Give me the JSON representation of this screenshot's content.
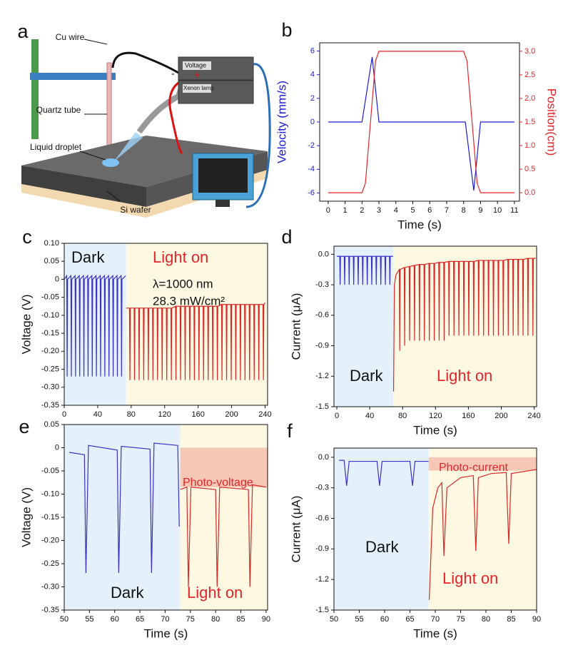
{
  "diagram": {
    "label": "a",
    "labels": [
      "Cu wire",
      "Quartz tube",
      "Liquid droplet",
      "Si wafer",
      "Voltage",
      "Xenon lamp",
      "-",
      "+"
    ]
  },
  "chart_data": [
    {
      "label": "b",
      "type": "line",
      "xlabel": "Time (s)",
      "ylabel": "Velocity (mm/s)",
      "y2label": "Position(cm)",
      "ylabel_color": "#1c1cd6",
      "y2label_color": "#e0262b",
      "xlim": [
        -0.5,
        11.3
      ],
      "xticks": [
        0,
        1,
        2,
        3,
        4,
        5,
        6,
        7,
        8,
        9,
        10,
        11
      ],
      "ylim": [
        -6.7,
        6.7
      ],
      "yticks": [
        -6,
        -4,
        -2,
        0,
        2,
        4,
        6
      ],
      "y2lim": [
        -0.18,
        3.18
      ],
      "y2ticks": [
        {
          "value": 0,
          "label": "0.0"
        },
        0.5,
        {
          "value": 1,
          "label": "1.0"
        },
        1.5,
        {
          "value": 2,
          "label": "2.0"
        },
        2.5,
        {
          "value": 3,
          "label": "3.0"
        }
      ],
      "series": [
        {
          "color": "#1c1cd6",
          "x": [
            0,
            2,
            2.6,
            3,
            8.1,
            8.6,
            9,
            11
          ],
          "values": [
            0,
            0,
            5.5,
            0,
            0,
            -5.8,
            0,
            0
          ]
        },
        {
          "color": "#e0262b",
          "axis": "y2",
          "x": [
            0,
            2,
            2.2,
            2.5,
            2.8,
            3,
            8,
            8.2,
            8.5,
            8.8,
            9,
            11
          ],
          "values": [
            0,
            0,
            0.2,
            1.5,
            2.8,
            3,
            3,
            2.8,
            1.5,
            0.2,
            0,
            0
          ]
        }
      ]
    },
    {
      "label": "c",
      "type": "line",
      "xlabel": "Time (s)",
      "ylabel": "Voltage (V)",
      "xlim": [
        0,
        243
      ],
      "xticks": [
        0,
        40,
        80,
        120,
        160,
        200,
        240
      ],
      "ylim": [
        -0.35,
        0.1
      ],
      "yticks": [
        {
          "value": 0.1,
          "label": "0.10"
        },
        0.05,
        0,
        -0.05,
        {
          "value": -0.1,
          "label": "-0.10"
        },
        -0.15,
        {
          "value": -0.2,
          "label": "-0.20"
        },
        -0.25,
        {
          "value": -0.3,
          "label": "-0.30"
        },
        -0.35
      ],
      "regions": [
        {
          "label": "Dark",
          "x": [
            0,
            74
          ],
          "color": "#e4f1fb",
          "text_color": "#111111"
        },
        {
          "label": "Light on",
          "x": [
            74,
            243
          ],
          "color": "#fdf8e2",
          "text_color": "#e0262b"
        }
      ],
      "annotations": [
        "λ=1000 nm",
        "28.3 mW/cm²"
      ],
      "series": [
        {
          "color": "#3a32c8",
          "x": [
            0,
            3,
            3.5,
            4,
            8,
            8.5,
            9,
            13,
            13.5,
            14,
            18,
            18.5,
            19,
            23,
            23.5,
            24,
            28,
            28.5,
            29,
            33,
            33.5,
            34,
            38,
            38.5,
            39,
            43,
            43.5,
            44,
            48,
            48.5,
            49,
            53,
            53.5,
            54,
            58,
            58.5,
            59,
            63,
            63.5,
            64,
            68,
            68.5,
            69,
            73.5
          ],
          "values": [
            0,
            0.01,
            -0.27,
            0,
            0.01,
            -0.27,
            0,
            0.01,
            -0.27,
            0,
            0.01,
            -0.27,
            0,
            0.01,
            -0.27,
            0,
            0.01,
            -0.27,
            0,
            0.01,
            -0.27,
            0,
            0.01,
            -0.27,
            0,
            0.01,
            -0.27,
            0,
            0.01,
            -0.27,
            0,
            0.01,
            -0.27,
            0,
            0.01,
            -0.27,
            0,
            0.01,
            -0.27,
            0,
            0.01,
            -0.27,
            0,
            0.01
          ]
        },
        {
          "color": "#d92828",
          "x": [
            74,
            78,
            78.5,
            79,
            83.5,
            84,
            84.5,
            89,
            89.5,
            90,
            94.5,
            95,
            95.5,
            100,
            100.5,
            101,
            105.5,
            106,
            106.5,
            111,
            111.5,
            112,
            116.5,
            117,
            117.5,
            122,
            122.5,
            123,
            127.5,
            128,
            128.5,
            133,
            133.5,
            134,
            138.5,
            139,
            139.5,
            144,
            144.5,
            145,
            149.5,
            150,
            150.5,
            155,
            155.5,
            156,
            160.5,
            161,
            161.5,
            166,
            166.5,
            167,
            171.5,
            172,
            172.5,
            177,
            177.5,
            178,
            182.5,
            183,
            183.5,
            188,
            188.5,
            189,
            193.5,
            194,
            194.5,
            199,
            199.5,
            200,
            204.5,
            205,
            205.5,
            210,
            210.5,
            211,
            215.5,
            216,
            216.5,
            221,
            221.5,
            222,
            226.5,
            227,
            227.5,
            232,
            232.5,
            233,
            237.5,
            238,
            238.5,
            240
          ],
          "values": [
            -0.08,
            -0.08,
            -0.28,
            -0.08,
            -0.08,
            -0.28,
            -0.08,
            -0.08,
            -0.28,
            -0.08,
            -0.08,
            -0.28,
            -0.08,
            -0.08,
            -0.28,
            -0.08,
            -0.08,
            -0.28,
            -0.08,
            -0.08,
            -0.28,
            -0.08,
            -0.08,
            -0.28,
            -0.08,
            -0.08,
            -0.28,
            -0.08,
            -0.08,
            -0.28,
            -0.08,
            -0.075,
            -0.28,
            -0.075,
            -0.075,
            -0.28,
            -0.075,
            -0.075,
            -0.28,
            -0.075,
            -0.075,
            -0.28,
            -0.075,
            -0.075,
            -0.28,
            -0.075,
            -0.075,
            -0.28,
            -0.075,
            -0.075,
            -0.28,
            -0.075,
            -0.075,
            -0.28,
            -0.075,
            -0.075,
            -0.28,
            -0.075,
            -0.075,
            -0.28,
            -0.075,
            -0.07,
            -0.28,
            -0.07,
            -0.07,
            -0.28,
            -0.07,
            -0.07,
            -0.28,
            -0.07,
            -0.07,
            -0.28,
            -0.07,
            -0.07,
            -0.28,
            -0.07,
            -0.07,
            -0.28,
            -0.07,
            -0.07,
            -0.28,
            -0.07,
            -0.07,
            -0.28,
            -0.07,
            -0.07,
            -0.28,
            -0.07,
            -0.07,
            -0.28,
            -0.07,
            -0.065
          ]
        }
      ]
    },
    {
      "label": "d",
      "type": "line",
      "xlabel": "Time (s)",
      "ylabel": "Current (μA)",
      "xlim": [
        -3.5,
        243
      ],
      "xticks": [
        0,
        40,
        80,
        120,
        160,
        200,
        240
      ],
      "ylim": [
        -1.5,
        0.08
      ],
      "yticks": [
        {
          "value": 0,
          "label": "0.0"
        },
        -0.3,
        -0.6,
        -0.9,
        -1.2,
        -1.5
      ],
      "regions": [
        {
          "label": "Dark",
          "x": [
            -3.5,
            68.6
          ],
          "color": "#e4f1fb",
          "text_color": "#111111"
        },
        {
          "label": "Light on",
          "x": [
            68.6,
            243
          ],
          "color": "#fdf8e2",
          "text_color": "#e0262b"
        }
      ],
      "series": [
        {
          "color": "#3a32c8",
          "x": [
            0,
            3.5,
            4,
            4.5,
            9,
            9.5,
            10,
            14.5,
            15,
            15.5,
            20,
            20.5,
            21,
            25.5,
            26,
            26.5,
            31,
            31.5,
            32,
            36.5,
            37,
            37.5,
            42,
            42.5,
            43,
            47.5,
            48,
            48.5,
            53,
            53.5,
            54,
            58.5,
            59,
            59.5,
            64,
            64.5,
            65,
            68.5
          ],
          "values": [
            -0.02,
            -0.02,
            -0.3,
            -0.02,
            -0.02,
            -0.3,
            -0.02,
            -0.02,
            -0.3,
            -0.02,
            -0.02,
            -0.3,
            -0.02,
            -0.02,
            -0.3,
            -0.02,
            -0.02,
            -0.3,
            -0.02,
            -0.02,
            -0.3,
            -0.02,
            -0.02,
            -0.3,
            -0.02,
            -0.02,
            -0.3,
            -0.02,
            -0.02,
            -0.3,
            -0.02,
            -0.02,
            -0.3,
            -0.02,
            -0.02,
            -0.3,
            -0.02,
            -0.02
          ]
        },
        {
          "color": "#d92828",
          "x": [
            69,
            70,
            72,
            76,
            76.5,
            77,
            82,
            82.5,
            83,
            88,
            88.5,
            89,
            94,
            94.5,
            95,
            100,
            100.5,
            101,
            106,
            106.5,
            107,
            112,
            112.5,
            113,
            118,
            118.5,
            119,
            124,
            124.5,
            125,
            130,
            130.5,
            131,
            136,
            136.5,
            137,
            142,
            142.5,
            143,
            148,
            148.5,
            149,
            154,
            154.5,
            155,
            160,
            160.5,
            161,
            166,
            166.5,
            167,
            172,
            172.5,
            173,
            178,
            178.5,
            179,
            184,
            184.5,
            185,
            190,
            190.5,
            191,
            196,
            196.5,
            197,
            202,
            202.5,
            203,
            208,
            208.5,
            209,
            214,
            214.5,
            215,
            220,
            220.5,
            221,
            226,
            226.5,
            227,
            232,
            232.5,
            233,
            238,
            238.5,
            239,
            242
          ],
          "values": [
            -1.35,
            -0.3,
            -0.2,
            -0.15,
            -0.95,
            -0.15,
            -0.13,
            -0.9,
            -0.13,
            -0.12,
            -0.85,
            -0.12,
            -0.11,
            -0.85,
            -0.11,
            -0.1,
            -0.85,
            -0.1,
            -0.1,
            -0.85,
            -0.1,
            -0.09,
            -0.85,
            -0.09,
            -0.09,
            -0.85,
            -0.09,
            -0.08,
            -0.85,
            -0.08,
            -0.08,
            -0.85,
            -0.08,
            -0.07,
            -0.8,
            -0.07,
            -0.07,
            -0.8,
            -0.07,
            -0.07,
            -0.8,
            -0.07,
            -0.07,
            -0.8,
            -0.07,
            -0.07,
            -0.8,
            -0.07,
            -0.07,
            -0.8,
            -0.07,
            -0.06,
            -0.8,
            -0.06,
            -0.06,
            -0.8,
            -0.06,
            -0.06,
            -0.8,
            -0.06,
            -0.06,
            -0.8,
            -0.06,
            -0.06,
            -0.8,
            -0.06,
            -0.06,
            -0.8,
            -0.06,
            -0.05,
            -0.8,
            -0.05,
            -0.05,
            -0.8,
            -0.05,
            -0.05,
            -0.8,
            -0.05,
            -0.05,
            -0.8,
            -0.05,
            -0.04,
            -0.8,
            -0.04,
            -0.04,
            -0.8,
            -0.04,
            -0.04
          ]
        }
      ]
    },
    {
      "label": "e",
      "type": "line",
      "xlabel": "Time (s)",
      "ylabel": "Voltage (V)",
      "xlim": [
        50,
        90.3
      ],
      "xticks": [
        50,
        55,
        60,
        65,
        70,
        75,
        80,
        85,
        90
      ],
      "ylim": [
        -0.35,
        0.05
      ],
      "yticks": [
        0.05,
        0,
        -0.05,
        {
          "value": -0.1,
          "label": "-0.10"
        },
        -0.15,
        {
          "value": -0.2,
          "label": "-0.20"
        },
        -0.25,
        {
          "value": -0.3,
          "label": "-0.30"
        },
        -0.35
      ],
      "regions": [
        {
          "label": "Dark",
          "x": [
            50,
            73
          ],
          "color": "#e4f1fb",
          "text_color": "#111111"
        },
        {
          "label": "Light on",
          "x": [
            73,
            90.3
          ],
          "color": "#fdf8e2",
          "text_color": "#e0262b"
        }
      ],
      "band": {
        "label": "Photo-voltage",
        "x": [
          73,
          90.3
        ],
        "y": [
          -0.085,
          0
        ],
        "color": "#f7c7b6",
        "text_color": "#e0262b"
      },
      "series": [
        {
          "color": "#3a32c8",
          "x": [
            51,
            54,
            54.3,
            54.8,
            60.5,
            60.8,
            61.3,
            67,
            67.3,
            67.8,
            72.5,
            72.8
          ],
          "values": [
            -0.01,
            -0.015,
            -0.27,
            0.005,
            -0.005,
            -0.27,
            0.003,
            -0.003,
            -0.27,
            0.01,
            0.005,
            -0.17
          ]
        },
        {
          "color": "#d92828",
          "x": [
            73,
            74.3,
            74.6,
            75.1,
            80,
            80.3,
            80.8,
            86.5,
            86.8,
            87.3,
            90
          ],
          "values": [
            -0.09,
            -0.085,
            -0.3,
            -0.085,
            -0.09,
            -0.3,
            -0.085,
            -0.09,
            -0.3,
            -0.08,
            -0.085
          ]
        }
      ]
    },
    {
      "label": "f",
      "type": "line",
      "xlabel": "Time (s)",
      "ylabel": "Current (μA)",
      "xlim": [
        50,
        90
      ],
      "xticks": [
        50,
        55,
        60,
        65,
        70,
        75,
        80,
        85,
        90
      ],
      "ylim": [
        -1.5,
        0.09
      ],
      "yticks": [
        {
          "value": 0,
          "label": "0.0"
        },
        -0.3,
        -0.6,
        -0.9,
        -1.2,
        -1.5
      ],
      "regions": [
        {
          "label": "Dark",
          "x": [
            50,
            68.7
          ],
          "color": "#e4f1fb",
          "text_color": "#111111"
        },
        {
          "label": "Light on",
          "x": [
            68.7,
            90
          ],
          "color": "#fdf8e2",
          "text_color": "#e0262b"
        }
      ],
      "band": {
        "label": "Photo-current",
        "x": [
          68.7,
          90
        ],
        "y": [
          -0.13,
          0
        ],
        "color": "#f7c7b6",
        "text_color": "#e0262b"
      },
      "series": [
        {
          "color": "#3a32c8",
          "x": [
            51,
            52,
            52.5,
            53,
            58.5,
            59,
            59.5,
            65,
            65.5,
            66,
            68.7
          ],
          "values": [
            -0.03,
            -0.03,
            -0.28,
            -0.04,
            -0.04,
            -0.28,
            -0.04,
            -0.04,
            -0.28,
            -0.04,
            -0.04
          ]
        },
        {
          "color": "#d92828",
          "x": [
            68.8,
            69.5,
            70.5,
            71.3,
            71.7,
            72.3,
            75,
            77.5,
            78,
            78.5,
            81,
            84,
            84.5,
            85,
            90
          ],
          "values": [
            -1.4,
            -0.5,
            -0.3,
            -0.25,
            -0.97,
            -0.3,
            -0.2,
            -0.18,
            -0.92,
            -0.2,
            -0.16,
            -0.15,
            -0.85,
            -0.16,
            -0.12
          ]
        }
      ]
    }
  ]
}
